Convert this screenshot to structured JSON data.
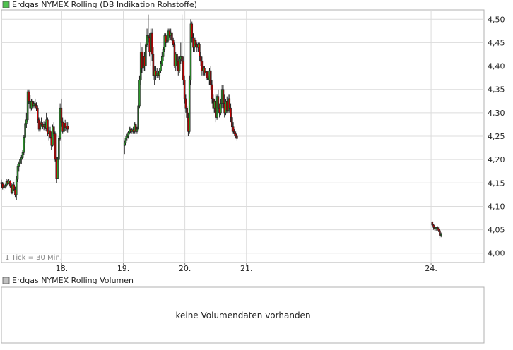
{
  "colors": {
    "up": "#2a9a2a",
    "down": "#c00000",
    "grid": "#dcdcdc",
    "border": "#b0b0b0",
    "swatch_price": "#4fc24f",
    "swatch_volume": "#c0c0c0"
  },
  "chart_data": [
    {
      "type": "candlestick",
      "title": "Erdgas NYMEX Rolling (DB Indikation Rohstoffe)",
      "legend_placement": "top-left",
      "interval_note": "1 Tick = 30 Min.",
      "grid": true,
      "y_axis_position": "right",
      "ylim": [
        3.98,
        4.52
      ],
      "y_ticks": [
        "4,50",
        "4,45",
        "4,40",
        "4,35",
        "4,30",
        "4,25",
        "4,20",
        "4,15",
        "4,10",
        "4,05",
        "4,00"
      ],
      "x_ticks": [
        "18.",
        "19.",
        "20.",
        "21.",
        "24."
      ],
      "xlim": [
        17.02,
        24.86
      ],
      "sessions": [
        {
          "start": 17.02,
          "step": 0.0203,
          "candles": [
            [
              4.151,
              4.157,
              4.14,
              4.148
            ],
            [
              4.148,
              4.152,
              4.136,
              4.14
            ],
            [
              4.14,
              4.147,
              4.133,
              4.143
            ],
            [
              4.143,
              4.148,
              4.138,
              4.145
            ],
            [
              4.145,
              4.158,
              4.141,
              4.153
            ],
            [
              4.153,
              4.157,
              4.146,
              4.15
            ],
            [
              4.15,
              4.158,
              4.147,
              4.154
            ],
            [
              4.154,
              4.156,
              4.14,
              4.143
            ],
            [
              4.143,
              4.15,
              4.126,
              4.13
            ],
            [
              4.13,
              4.148,
              4.126,
              4.146
            ],
            [
              4.146,
              4.152,
              4.133,
              4.136
            ],
            [
              4.136,
              4.142,
              4.12,
              4.125
            ],
            [
              4.125,
              4.164,
              4.114,
              4.158
            ],
            [
              4.158,
              4.191,
              4.152,
              4.186
            ],
            [
              4.186,
              4.196,
              4.174,
              4.192
            ],
            [
              4.192,
              4.205,
              4.185,
              4.2
            ],
            [
              4.2,
              4.21,
              4.19,
              4.204
            ],
            [
              4.204,
              4.22,
              4.2,
              4.215
            ],
            [
              4.215,
              4.252,
              4.21,
              4.248
            ],
            [
              4.248,
              4.28,
              4.236,
              4.276
            ],
            [
              4.276,
              4.3,
              4.268,
              4.285
            ],
            [
              4.285,
              4.35,
              4.28,
              4.345
            ],
            [
              4.345,
              4.35,
              4.318,
              4.325
            ],
            [
              4.325,
              4.338,
              4.302,
              4.31
            ],
            [
              4.31,
              4.33,
              4.305,
              4.325
            ],
            [
              4.325,
              4.33,
              4.31,
              4.315
            ],
            [
              4.315,
              4.325,
              4.31,
              4.32
            ],
            [
              4.32,
              4.33,
              4.31,
              4.315
            ],
            [
              4.315,
              4.322,
              4.304,
              4.31
            ],
            [
              4.31,
              4.316,
              4.278,
              4.285
            ],
            [
              4.285,
              4.29,
              4.26,
              4.265
            ],
            [
              4.265,
              4.283,
              4.26,
              4.279
            ],
            [
              4.279,
              4.29,
              4.27,
              4.275
            ],
            [
              4.275,
              4.28,
              4.265,
              4.27
            ],
            [
              4.27,
              4.281,
              4.263,
              4.275
            ],
            [
              4.275,
              4.28,
              4.262,
              4.266
            ],
            [
              4.266,
              4.3,
              4.26,
              4.285
            ],
            [
              4.285,
              4.29,
              4.25,
              4.255
            ],
            [
              4.255,
              4.27,
              4.24,
              4.262
            ],
            [
              4.262,
              4.27,
              4.245,
              4.248
            ],
            [
              4.248,
              4.26,
              4.22,
              4.23
            ],
            [
              4.23,
              4.275,
              4.228,
              4.27
            ],
            [
              4.27,
              4.28,
              4.25,
              4.255
            ],
            [
              4.255,
              4.26,
              4.196,
              4.2
            ],
            [
              4.2,
              4.205,
              4.15,
              4.16
            ],
            [
              4.16,
              4.205,
              4.158,
              4.2
            ],
            [
              4.2,
              4.25,
              4.195,
              4.245
            ],
            [
              4.245,
              4.32,
              4.24,
              4.31
            ],
            [
              4.31,
              4.33,
              4.27,
              4.28
            ],
            [
              4.28,
              4.29,
              4.255,
              4.26
            ],
            [
              4.26,
              4.285,
              4.255,
              4.278
            ],
            [
              4.278,
              4.285,
              4.262,
              4.268
            ],
            [
              4.268,
              4.28,
              4.26,
              4.272
            ],
            [
              4.272,
              4.28,
              4.258,
              4.265
            ]
          ]
        },
        {
          "start": 19.02,
          "step": 0.0203,
          "candles": [
            [
              4.23,
              4.24,
              4.212,
              4.236
            ],
            [
              4.236,
              4.25,
              4.23,
              4.246
            ],
            [
              4.246,
              4.255,
              4.24,
              4.25
            ],
            [
              4.25,
              4.262,
              4.245,
              4.258
            ],
            [
              4.258,
              4.27,
              4.254,
              4.265
            ],
            [
              4.265,
              4.27,
              4.255,
              4.26
            ],
            [
              4.26,
              4.268,
              4.255,
              4.264
            ],
            [
              4.264,
              4.27,
              4.255,
              4.26
            ],
            [
              4.26,
              4.28,
              4.255,
              4.275
            ],
            [
              4.275,
              4.28,
              4.255,
              4.26
            ],
            [
              4.26,
              4.27,
              4.255,
              4.265
            ],
            [
              4.265,
              4.32,
              4.26,
              4.315
            ],
            [
              4.315,
              4.38,
              4.31,
              4.37
            ],
            [
              4.37,
              4.45,
              4.36,
              4.43
            ],
            [
              4.43,
              4.44,
              4.385,
              4.395
            ],
            [
              4.395,
              4.43,
              4.39,
              4.42
            ],
            [
              4.42,
              4.43,
              4.39,
              4.4
            ],
            [
              4.4,
              4.45,
              4.39,
              4.445
            ],
            [
              4.445,
              4.48,
              4.44,
              4.465
            ],
            [
              4.465,
              4.51,
              4.45,
              4.46
            ],
            [
              4.46,
              4.47,
              4.42,
              4.43
            ],
            [
              4.43,
              4.48,
              4.4,
              4.47
            ],
            [
              4.47,
              4.48,
              4.41,
              4.425
            ],
            [
              4.425,
              4.44,
              4.37,
              4.38
            ],
            [
              4.38,
              4.4,
              4.36,
              4.39
            ],
            [
              4.39,
              4.4,
              4.37,
              4.38
            ],
            [
              4.38,
              4.395,
              4.375,
              4.385
            ],
            [
              4.385,
              4.39,
              4.375,
              4.38
            ],
            [
              4.38,
              4.395,
              4.37,
              4.39
            ],
            [
              4.39,
              4.41,
              4.385,
              4.405
            ],
            [
              4.405,
              4.43,
              4.4,
              4.42
            ],
            [
              4.42,
              4.44,
              4.41,
              4.435
            ],
            [
              4.435,
              4.47,
              4.43,
              4.465
            ],
            [
              4.465,
              4.47,
              4.44,
              4.45
            ],
            [
              4.45,
              4.46,
              4.44,
              4.455
            ],
            [
              4.455,
              4.48,
              4.45,
              4.475
            ],
            [
              4.475,
              4.48,
              4.46,
              4.465
            ],
            [
              4.465,
              4.48,
              4.455,
              4.47
            ],
            [
              4.47,
              4.475,
              4.45,
              4.455
            ],
            [
              4.455,
              4.46,
              4.44,
              4.445
            ],
            [
              4.445,
              4.45,
              4.395,
              4.4
            ],
            [
              4.4,
              4.43,
              4.39,
              4.425
            ],
            [
              4.425,
              4.44,
              4.4,
              4.41
            ],
            [
              4.41,
              4.42,
              4.38,
              4.39
            ],
            [
              4.39,
              4.42,
              4.385,
              4.415
            ],
            [
              4.415,
              4.45,
              4.405,
              4.42
            ],
            [
              4.42,
              4.51,
              4.4,
              4.41
            ],
            [
              4.41,
              4.42,
              4.36,
              4.37
            ],
            [
              4.37,
              4.38,
              4.32,
              4.33
            ],
            [
              4.33,
              4.34,
              4.3,
              4.31
            ],
            [
              4.31,
              4.315,
              4.28,
              4.29
            ],
            [
              4.29,
              4.3,
              4.25,
              4.26
            ],
            [
              4.26,
              4.38,
              4.255,
              4.37
            ],
            [
              4.37,
              4.5,
              4.36,
              4.49
            ],
            [
              4.49,
              4.495,
              4.45,
              4.46
            ],
            [
              4.46,
              4.47,
              4.43,
              4.44
            ],
            [
              4.44,
              4.46,
              4.43,
              4.455
            ],
            [
              4.455,
              4.46,
              4.44,
              4.445
            ],
            [
              4.445,
              4.45,
              4.43,
              4.44
            ],
            [
              4.44,
              4.45,
              4.43,
              4.446
            ],
            [
              4.446,
              4.45,
              4.41,
              4.42
            ],
            [
              4.42,
              4.43,
              4.4,
              4.41
            ],
            [
              4.41,
              4.42,
              4.38,
              4.39
            ],
            [
              4.39,
              4.4,
              4.38,
              4.395
            ],
            [
              4.395,
              4.4,
              4.38,
              4.385
            ],
            [
              4.385,
              4.39,
              4.38,
              4.388
            ],
            [
              4.388,
              4.39,
              4.37,
              4.375
            ],
            [
              4.375,
              4.38,
              4.36,
              4.37
            ],
            [
              4.37,
              4.395,
              4.36,
              4.39
            ],
            [
              4.39,
              4.4,
              4.35,
              4.36
            ],
            [
              4.36,
              4.37,
              4.32,
              4.33
            ],
            [
              4.33,
              4.34,
              4.3,
              4.31
            ],
            [
              4.31,
              4.33,
              4.3,
              4.325
            ],
            [
              4.325,
              4.34,
              4.28,
              4.29
            ],
            [
              4.29,
              4.34,
              4.285,
              4.335
            ],
            [
              4.335,
              4.35,
              4.3,
              4.31
            ],
            [
              4.31,
              4.32,
              4.29,
              4.3
            ],
            [
              4.3,
              4.33,
              4.295,
              4.32
            ],
            [
              4.32,
              4.36,
              4.31,
              4.35
            ],
            [
              4.35,
              4.36,
              4.31,
              4.32
            ],
            [
              4.32,
              4.34,
              4.29,
              4.3
            ],
            [
              4.3,
              4.33,
              4.295,
              4.325
            ],
            [
              4.325,
              4.335,
              4.3,
              4.305
            ],
            [
              4.305,
              4.34,
              4.3,
              4.33
            ],
            [
              4.33,
              4.34,
              4.3,
              4.31
            ],
            [
              4.31,
              4.32,
              4.28,
              4.29
            ],
            [
              4.29,
              4.3,
              4.26,
              4.27
            ],
            [
              4.27,
              4.28,
              4.255,
              4.26
            ],
            [
              4.26,
              4.265,
              4.25,
              4.255
            ],
            [
              4.255,
              4.26,
              4.245,
              4.25
            ],
            [
              4.25,
              4.255,
              4.24,
              4.245
            ]
          ]
        },
        {
          "start": 24.02,
          "step": 0.0203,
          "candles": [
            [
              4.066,
              4.068,
              4.058,
              4.06
            ],
            [
              4.06,
              4.062,
              4.05,
              4.055
            ],
            [
              4.055,
              4.058,
              4.048,
              4.052
            ],
            [
              4.052,
              4.056,
              4.048,
              4.055
            ],
            [
              4.055,
              4.058,
              4.05,
              4.052
            ],
            [
              4.052,
              4.055,
              4.045,
              4.048
            ],
            [
              4.048,
              4.05,
              4.032,
              4.038
            ],
            [
              4.038,
              4.044,
              4.034,
              4.04
            ]
          ]
        }
      ]
    },
    {
      "type": "bar",
      "title": "Erdgas NYMEX Rolling Volumen",
      "legend_placement": "top-left",
      "empty_message": "keine Volumendaten vorhanden",
      "values": []
    }
  ]
}
